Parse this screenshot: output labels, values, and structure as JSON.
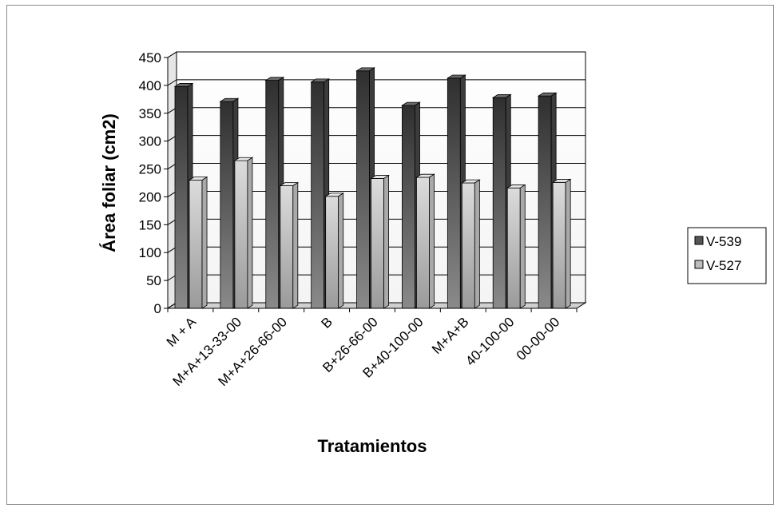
{
  "chart_data": {
    "type": "bar",
    "title": "",
    "xlabel": "Tratamientos",
    "ylabel": "Área foliar (cm2)",
    "ylim": [
      0,
      450
    ],
    "yticks": [
      0,
      50,
      100,
      150,
      200,
      250,
      300,
      350,
      400,
      450
    ],
    "categories": [
      "M + A",
      "M+A+13-33-00",
      "M+A+26-66-00",
      "B",
      "B+26-66-00",
      "B+40-100-00",
      "M+A+B",
      "40-100-00",
      "00-00-00"
    ],
    "series": [
      {
        "name": "V-539",
        "values": [
          398,
          371,
          409,
          406,
          426,
          364,
          413,
          378,
          381
        ],
        "color": "#555555"
      },
      {
        "name": "V-527",
        "values": [
          230,
          265,
          220,
          201,
          233,
          235,
          225,
          216,
          226
        ],
        "color": "#bdbdbd"
      }
    ],
    "grid": true,
    "legend_position": "right",
    "style": "3d-column"
  }
}
